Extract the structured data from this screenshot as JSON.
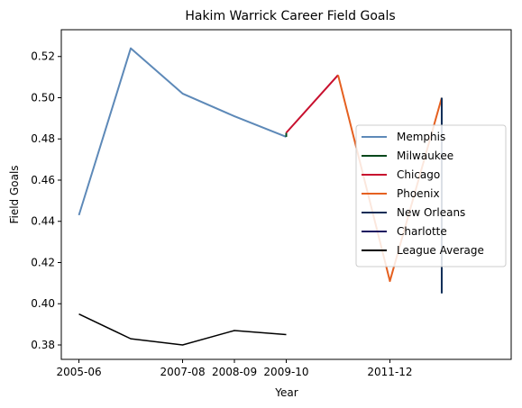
{
  "chart_data": {
    "type": "line",
    "title": "Hakim Warrick Career Field Goals",
    "xlabel": "Year",
    "ylabel": "Field Goals",
    "x_tick_labels": [
      "2005-06",
      "2007-08",
      "2008-09",
      "2009-10",
      "2011-12"
    ],
    "y_tick_labels": [
      "0.38",
      "0.40",
      "0.42",
      "0.44",
      "0.46",
      "0.48",
      "0.50",
      "0.52"
    ],
    "ylim": [
      0.373,
      0.533
    ],
    "grid": false,
    "legend_position": "center-right",
    "series": [
      {
        "name": "Memphis",
        "color": "#5d89b8",
        "x": [
          "2005-06",
          "2006-07",
          "2007-08",
          "2008-09",
          "2009-10"
        ],
        "values": [
          0.443,
          0.524,
          0.502,
          0.491,
          0.481
        ]
      },
      {
        "name": "Milwaukee",
        "color": "#00471b",
        "x": [
          "2009-10",
          "2009-10"
        ],
        "values": [
          0.481,
          0.483
        ]
      },
      {
        "name": "Chicago",
        "color": "#c8102e",
        "x": [
          "2009-10",
          "2010-11"
        ],
        "values": [
          0.483,
          0.511
        ]
      },
      {
        "name": "Phoenix",
        "color": "#e56020",
        "x": [
          "2010-11",
          "2011-12",
          "2012-13"
        ],
        "values": [
          0.511,
          0.411,
          0.5
        ]
      },
      {
        "name": "New Orleans",
        "color": "#0c2c56",
        "x": [
          "2012-13",
          "2012-13"
        ],
        "values": [
          0.5,
          0.405
        ]
      },
      {
        "name": "Charlotte",
        "color": "#1d1160",
        "x": [
          "2012-13",
          "2012-13"
        ],
        "values": [
          0.405,
          0.405
        ]
      },
      {
        "name": "League Average",
        "color": "#000000",
        "x": [
          "2005-06",
          "2006-07",
          "2007-08",
          "2008-09",
          "2009-10"
        ],
        "values": [
          0.395,
          0.383,
          0.38,
          0.387,
          0.385
        ]
      }
    ]
  }
}
